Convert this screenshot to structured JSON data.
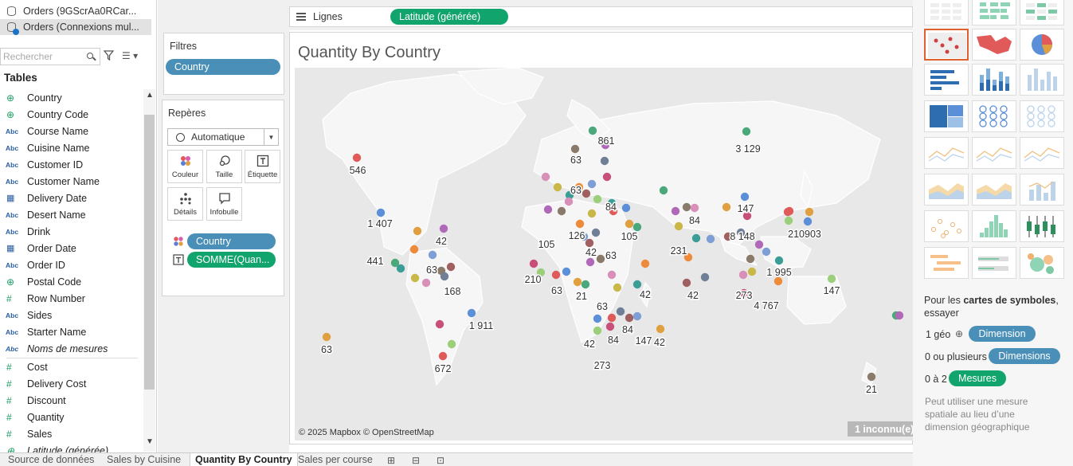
{
  "datasources": [
    {
      "label": "Orders (9GScrAa0RCar...",
      "selected": false
    },
    {
      "label": "Orders (Connexions mul...",
      "selected": true
    }
  ],
  "search": {
    "placeholder": "Rechercher"
  },
  "tables_header": "Tables",
  "fields": [
    {
      "label": "Country",
      "type": "globe"
    },
    {
      "label": "Country Code",
      "type": "globe"
    },
    {
      "label": "Course Name",
      "type": "abc"
    },
    {
      "label": "Cuisine Name",
      "type": "abc"
    },
    {
      "label": "Customer ID",
      "type": "abc"
    },
    {
      "label": "Customer Name",
      "type": "abc"
    },
    {
      "label": "Delivery Date",
      "type": "date"
    },
    {
      "label": "Desert Name",
      "type": "abc"
    },
    {
      "label": "Drink",
      "type": "abc"
    },
    {
      "label": "Order Date",
      "type": "date"
    },
    {
      "label": "Order ID",
      "type": "abc"
    },
    {
      "label": "Postal Code",
      "type": "globe"
    },
    {
      "label": "Row Number",
      "type": "number"
    },
    {
      "label": "Sides",
      "type": "abc"
    },
    {
      "label": "Starter Name",
      "type": "abc"
    },
    {
      "label": "Noms de mesures",
      "type": "abc",
      "italic": true
    }
  ],
  "measures": [
    {
      "label": "Cost",
      "type": "number"
    },
    {
      "label": "Delivery Cost",
      "type": "number"
    },
    {
      "label": "Discount",
      "type": "number"
    },
    {
      "label": "Quantity",
      "type": "number"
    },
    {
      "label": "Sales",
      "type": "number"
    },
    {
      "label": "Latitude (générée)",
      "type": "globe",
      "italic": true
    }
  ],
  "filters": {
    "title": "Filtres",
    "pill": "Country"
  },
  "marks": {
    "title": "Repères",
    "type": "Automatique",
    "buttons": [
      "Couleur",
      "Taille",
      "Étiquette",
      "Détails",
      "Infobulle"
    ],
    "color_pill": "Country",
    "label_pill": "SOMME(Quan..."
  },
  "rows_shelf": {
    "label": "Lignes",
    "pill": "Latitude (générée)"
  },
  "sheet": {
    "title": "Quantity By Country",
    "credits": "© 2025 Mapbox © OpenStreetMap",
    "unknown": "1 inconnu(e)"
  },
  "map_labels": [
    "861",
    "63",
    "3 129",
    "546",
    "63",
    "84",
    "147",
    "1 407",
    "42",
    "84",
    "210903",
    "105",
    "126",
    "42",
    "63",
    "105",
    "8 148",
    "441",
    "63",
    "231",
    "168",
    "210",
    "63",
    "21",
    "63",
    "1 995",
    "42",
    "42",
    "147",
    "273",
    "4 767",
    "1 911",
    "63",
    "84",
    "147",
    "42",
    "84",
    "42",
    "672",
    "273",
    "21"
  ],
  "show_me": {
    "hint_prefix": "Pour les ",
    "hint_bold": "cartes de symboles",
    "hint_suffix": ", essayer",
    "req1_text": "1 géo",
    "req1_pill": "Dimension",
    "req2_text": "0 ou plusieurs",
    "req2_pill": "Dimensions",
    "req3_text": "0 à 2",
    "req3_pill": "Mesures",
    "note": "Peut utiliser une mesure spatiale au lieu d’une dimension géographique"
  },
  "tabs": [
    "Source de données",
    "Sales by Cuisine",
    "Quantity By Country",
    "Sales per course"
  ],
  "colors": {
    "blue_pill": "#4a8fb8",
    "green_pill": "#11a56d",
    "accent": "#e06030"
  }
}
